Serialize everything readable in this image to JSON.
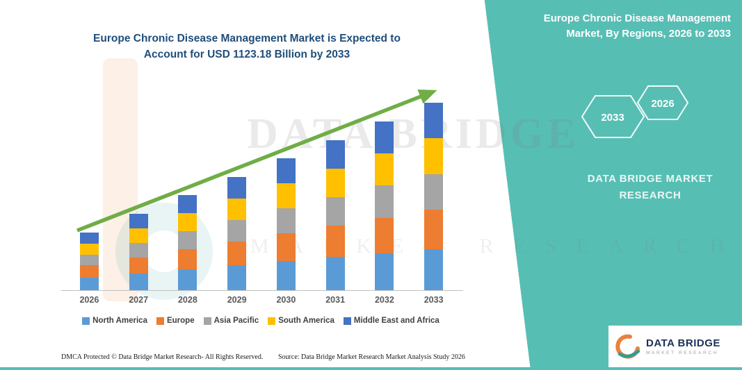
{
  "title": {
    "line1": "Europe Chronic Disease Management Market is Expected to",
    "line2": "Account for USD 1123.18 Billion by 2033"
  },
  "panel": {
    "heading": "Europe Chronic Disease Management Market, By Regions, 2026 to 2033",
    "hexagon_left": "2033",
    "hexagon_right": "2026",
    "brand_line1": "DATA BRIDGE MARKET",
    "brand_line2": "RESEARCH",
    "accent_color": "#57BEB4"
  },
  "watermark": {
    "line1": "DATA BRIDGE",
    "line2": "MARKET RESEARCH"
  },
  "logo": {
    "name": "DATA BRIDGE",
    "subtext": "MARKET RESEARCH"
  },
  "footer": {
    "dmca": "DMCA Protected © Data Bridge Market Research-  All Rights Reserved.",
    "source": "Source: Data Bridge Market Research  Market Analysis Study 2026"
  },
  "chart_data": {
    "type": "bar",
    "stacked": true,
    "title": "Europe Chronic Disease Management Market is Expected to Account for USD 1123.18 Billion by 2033",
    "units": "USD Billion",
    "xlabel": "",
    "ylabel": "",
    "ylim": [
      0,
      1200
    ],
    "y_axis_visible": false,
    "grid": false,
    "legend_position": "bottom",
    "trend_arrow": true,
    "categories": [
      "2026",
      "2027",
      "2028",
      "2029",
      "2030",
      "2031",
      "2032",
      "2033"
    ],
    "series": [
      {
        "name": "North America",
        "color": "#5B9BD5",
        "values": [
          76,
          101,
          125,
          150,
          174,
          198,
          222,
          247
        ]
      },
      {
        "name": "Europe",
        "color": "#ED7D31",
        "values": [
          72,
          96,
          120,
          143,
          166,
          189,
          212,
          236
        ]
      },
      {
        "name": "Asia Pacific",
        "color": "#A5A5A5",
        "values": [
          66,
          87,
          108,
          129,
          150,
          171,
          192,
          213.4
        ]
      },
      {
        "name": "South America",
        "color": "#FFC000",
        "values": [
          66,
          87,
          108,
          129,
          150,
          171,
          192,
          213.4
        ]
      },
      {
        "name": "Middle East and Africa",
        "color": "#4472C4",
        "values": [
          66,
          87,
          108,
          129,
          150,
          171,
          192,
          213.38
        ]
      }
    ],
    "totals": [
      346,
      458,
      569,
      680,
      790,
      900,
      1010,
      1123.18
    ]
  }
}
